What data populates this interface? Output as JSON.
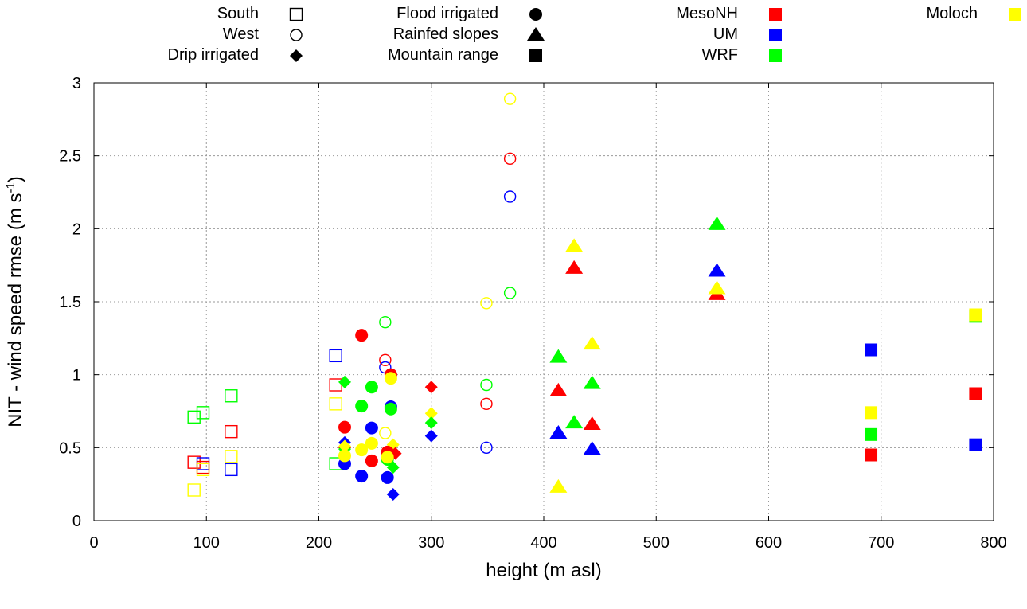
{
  "chart_data": {
    "type": "scatter",
    "title": "",
    "xlabel": "height (m asl)",
    "ylabel_main": "NIT - wind speed rmse (m s",
    "ylabel_sup": "-1",
    "ylabel_close": ")",
    "xlim": [
      0,
      800
    ],
    "ylim": [
      0,
      3
    ],
    "xticks": [
      0,
      100,
      200,
      300,
      400,
      500,
      600,
      700,
      800
    ],
    "yticks": [
      0,
      0.5,
      1,
      1.5,
      2,
      2.5,
      3
    ],
    "ytick_labels": [
      "0",
      "0.5",
      "1",
      "1.5",
      "2",
      "2.5",
      "3"
    ],
    "grid": true,
    "legend_position": "top",
    "legend_groups": [
      {
        "label": "South",
        "shape": "open-square"
      },
      {
        "label": "West",
        "shape": "open-circle"
      },
      {
        "label": "Drip irrigated",
        "shape": "diamond"
      },
      {
        "label": "Flood irrigated",
        "shape": "circle"
      },
      {
        "label": "Rainfed slopes",
        "shape": "triangle"
      },
      {
        "label": "Mountain range",
        "shape": "square"
      }
    ],
    "legend_models": [
      {
        "label": "MesoNH",
        "color": "#ff0000"
      },
      {
        "label": "UM",
        "color": "#0000ff"
      },
      {
        "label": "WRF",
        "color": "#00ff00"
      },
      {
        "label": "Moloch",
        "color": "#ffff00"
      }
    ],
    "points": [
      [
        "WRF",
        "open-square",
        89,
        0.71
      ],
      [
        "WRF",
        "open-square",
        97,
        0.74
      ],
      [
        "MesoNH",
        "open-square",
        89,
        0.4
      ],
      [
        "UM",
        "open-square",
        97,
        0.39
      ],
      [
        "MesoNH",
        "open-square",
        97,
        0.365
      ],
      [
        "Moloch",
        "open-square",
        97,
        0.35
      ],
      [
        "Moloch",
        "open-square",
        89,
        0.21
      ],
      [
        "WRF",
        "open-square",
        122,
        0.855
      ],
      [
        "MesoNH",
        "open-square",
        122,
        0.61
      ],
      [
        "Moloch",
        "open-square",
        122,
        0.44
      ],
      [
        "UM",
        "open-square",
        122,
        0.35
      ],
      [
        "UM",
        "open-square",
        215,
        1.13
      ],
      [
        "MesoNH",
        "open-square",
        215,
        0.93
      ],
      [
        "Moloch",
        "open-square",
        215,
        0.8
      ],
      [
        "WRF",
        "open-square",
        215,
        0.39
      ],
      [
        "WRF",
        "open-circle",
        259,
        1.36
      ],
      [
        "MesoNH",
        "open-circle",
        259,
        1.1
      ],
      [
        "UM",
        "open-circle",
        259,
        1.05
      ],
      [
        "Moloch",
        "open-circle",
        259,
        0.6
      ],
      [
        "Moloch",
        "open-circle",
        349,
        1.49
      ],
      [
        "WRF",
        "open-circle",
        349,
        0.93
      ],
      [
        "MesoNH",
        "open-circle",
        349,
        0.8
      ],
      [
        "UM",
        "open-circle",
        349,
        0.5
      ],
      [
        "Moloch",
        "open-circle",
        370,
        2.89
      ],
      [
        "MesoNH",
        "open-circle",
        370,
        2.48
      ],
      [
        "UM",
        "open-circle",
        370,
        2.22
      ],
      [
        "WRF",
        "open-circle",
        370,
        1.56
      ],
      [
        "WRF",
        "diamond",
        223,
        0.95
      ],
      [
        "UM",
        "diamond",
        223,
        0.535
      ],
      [
        "MesoNH",
        "diamond",
        223,
        0.5
      ],
      [
        "WRF",
        "diamond",
        223,
        0.49
      ],
      [
        "Moloch",
        "diamond",
        223,
        0.51
      ],
      [
        "Moloch",
        "diamond",
        266,
        0.52
      ],
      [
        "MesoNH",
        "diamond",
        268,
        0.46
      ],
      [
        "WRF",
        "diamond",
        266,
        0.365
      ],
      [
        "UM",
        "diamond",
        266,
        0.18
      ],
      [
        "MesoNH",
        "diamond",
        300,
        0.915
      ],
      [
        "Moloch",
        "diamond",
        300,
        0.735
      ],
      [
        "WRF",
        "diamond",
        300,
        0.67
      ],
      [
        "UM",
        "diamond",
        300,
        0.58
      ],
      [
        "MesoNH",
        "circle",
        238,
        1.27
      ],
      [
        "WRF",
        "circle",
        247,
        0.915
      ],
      [
        "WRF",
        "circle",
        238,
        0.785
      ],
      [
        "MesoNH",
        "circle",
        264,
        1.0
      ],
      [
        "Moloch",
        "circle",
        264,
        0.975
      ],
      [
        "UM",
        "circle",
        264,
        0.78
      ],
      [
        "WRF",
        "circle",
        264,
        0.765
      ],
      [
        "MesoNH",
        "circle",
        223,
        0.64
      ],
      [
        "UM",
        "circle",
        247,
        0.635
      ],
      [
        "Moloch",
        "circle",
        247,
        0.53
      ],
      [
        "Moloch",
        "circle",
        238,
        0.485
      ],
      [
        "MesoNH",
        "circle",
        261,
        0.47
      ],
      [
        "WRF",
        "circle",
        261,
        0.42
      ],
      [
        "Moloch",
        "circle",
        261,
        0.435
      ],
      [
        "MesoNH",
        "circle",
        247,
        0.41
      ],
      [
        "UM",
        "circle",
        223,
        0.39
      ],
      [
        "Moloch",
        "circle",
        223,
        0.445
      ],
      [
        "UM",
        "circle",
        238,
        0.305
      ],
      [
        "UM",
        "circle",
        261,
        0.295
      ],
      [
        "WRF",
        "triangle",
        413,
        1.12
      ],
      [
        "MesoNH",
        "triangle",
        413,
        0.89
      ],
      [
        "UM",
        "triangle",
        413,
        0.6
      ],
      [
        "Moloch",
        "triangle",
        413,
        0.23
      ],
      [
        "Moloch",
        "triangle",
        427,
        1.88
      ],
      [
        "MesoNH",
        "triangle",
        427,
        1.73
      ],
      [
        "WRF",
        "triangle",
        427,
        0.67
      ],
      [
        "Moloch",
        "triangle",
        443,
        1.21
      ],
      [
        "WRF",
        "triangle",
        443,
        0.94
      ],
      [
        "MesoNH",
        "triangle",
        443,
        0.66
      ],
      [
        "UM",
        "triangle",
        443,
        0.49
      ],
      [
        "WRF",
        "triangle",
        554,
        2.03
      ],
      [
        "UM",
        "triangle",
        554,
        1.71
      ],
      [
        "MesoNH",
        "triangle",
        554,
        1.55
      ],
      [
        "Moloch",
        "triangle",
        554,
        1.59
      ],
      [
        "UM",
        "square",
        691,
        1.17
      ],
      [
        "Moloch",
        "square",
        691,
        0.74
      ],
      [
        "WRF",
        "square",
        691,
        0.59
      ],
      [
        "MesoNH",
        "square",
        691,
        0.45
      ],
      [
        "WRF",
        "square",
        784,
        1.4
      ],
      [
        "Moloch",
        "square",
        784,
        1.41
      ],
      [
        "MesoNH",
        "square",
        784,
        0.87
      ],
      [
        "UM",
        "square",
        784,
        0.52
      ]
    ]
  }
}
